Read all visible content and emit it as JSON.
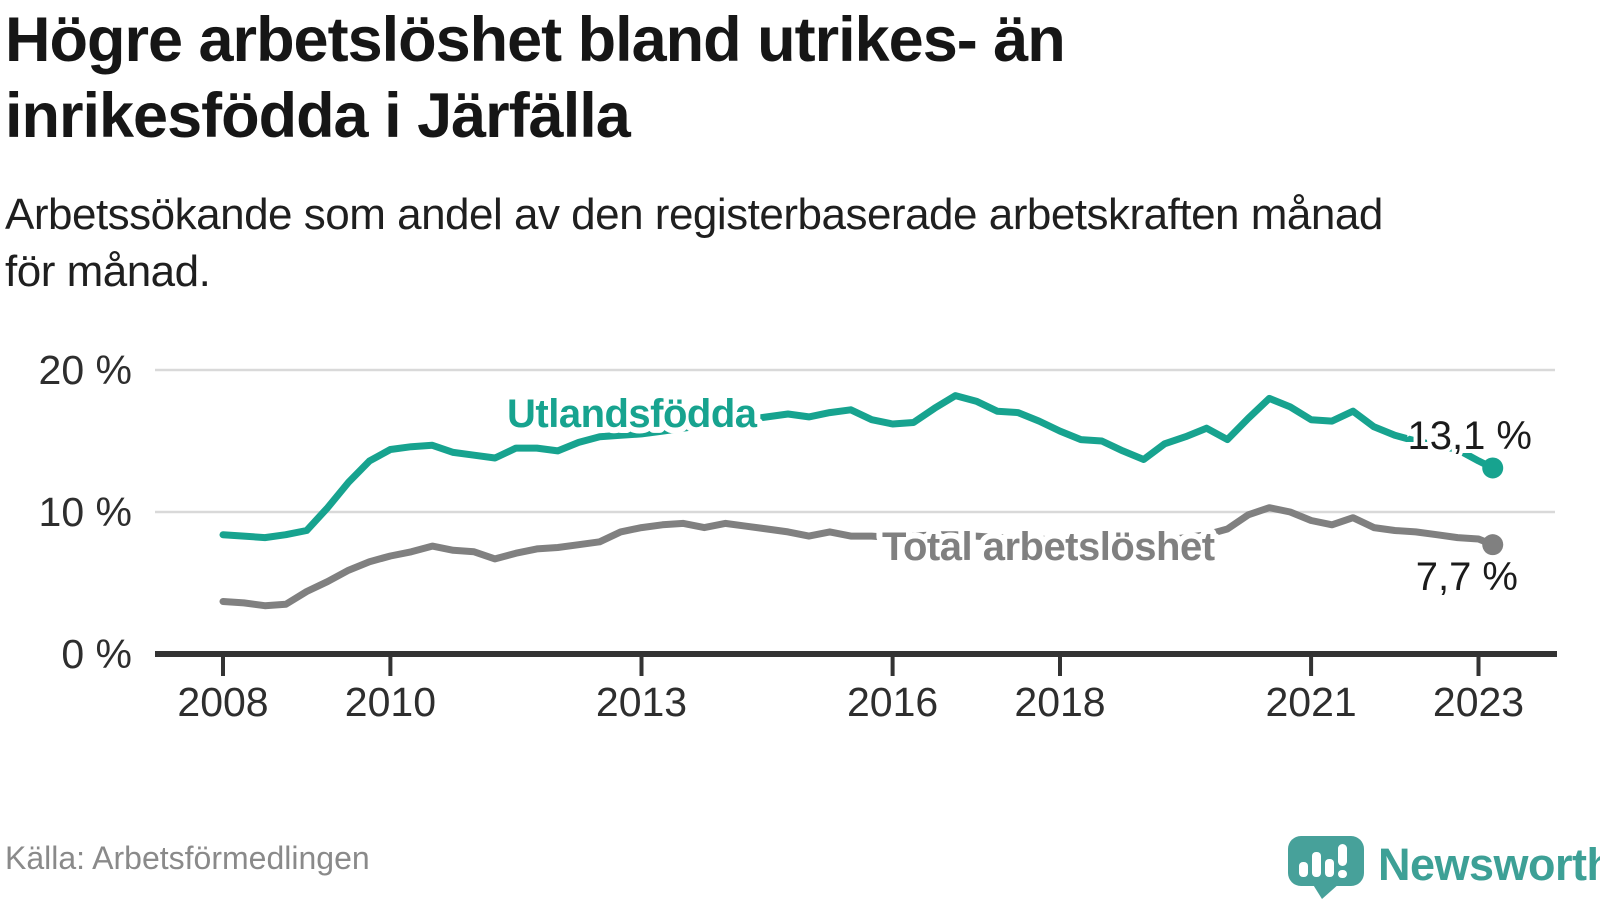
{
  "header": {
    "title_line1": "Högre arbetslöshet bland utrikes- än",
    "title_line2": "inrikesfödda i Järfälla",
    "subtitle_line1": "Arbetssökande som andel av den registerbaserade arbetskraften månad",
    "subtitle_line2": "för månad."
  },
  "footer": {
    "source": "Källa: Arbetsförmedlingen",
    "brand_name": "Newsworthy",
    "logo_icon": "speech-bubble-bar-chart-icon"
  },
  "colors": {
    "foreign_born_line": "#17a38f",
    "total_line": "#808080",
    "grid_line": "#d9d9d9",
    "axis_line": "#333333",
    "tick_label": "#2e2e2e",
    "value_label": "#1b1b1b",
    "title_text": "#161616",
    "source_text": "#8a8a8a",
    "brand_teal": "#3da096",
    "logo_teal": "#47a19a"
  },
  "chart_data": {
    "type": "line",
    "unit": "%",
    "title": "Arbetssökande som andel av den registerbaserade arbetskraften månad för månad",
    "xlabel": "",
    "ylabel": "",
    "ylim": [
      0,
      21
    ],
    "xlim": [
      2007.9,
      2023.6
    ],
    "grid": "horizontal",
    "legend_position": "inline-labels",
    "x": [
      2008.0,
      2008.25,
      2008.5,
      2008.75,
      2009.0,
      2009.25,
      2009.5,
      2009.75,
      2010.0,
      2010.25,
      2010.5,
      2010.75,
      2011.0,
      2011.25,
      2011.5,
      2011.75,
      2012.0,
      2012.25,
      2012.5,
      2012.75,
      2013.0,
      2013.25,
      2013.5,
      2013.75,
      2014.0,
      2014.25,
      2014.5,
      2014.75,
      2015.0,
      2015.25,
      2015.5,
      2015.75,
      2016.0,
      2016.25,
      2016.5,
      2016.75,
      2017.0,
      2017.25,
      2017.5,
      2017.75,
      2018.0,
      2018.25,
      2018.5,
      2018.75,
      2019.0,
      2019.25,
      2019.5,
      2019.75,
      2020.0,
      2020.25,
      2020.5,
      2020.75,
      2021.0,
      2021.25,
      2021.5,
      2021.75,
      2022.0,
      2022.25,
      2022.5,
      2022.75,
      2023.0,
      2023.17
    ],
    "series": [
      {
        "name": "Utlandsfödda",
        "color": "#17a38f",
        "end_label": "13,1 %",
        "last_value": 13.1,
        "values": [
          8.4,
          8.3,
          8.2,
          8.4,
          8.7,
          10.3,
          12.1,
          13.6,
          14.4,
          14.6,
          14.7,
          14.2,
          14.0,
          13.8,
          14.5,
          14.5,
          14.3,
          14.9,
          15.3,
          15.4,
          15.5,
          15.7,
          15.9,
          16.1,
          16.3,
          16.5,
          16.7,
          16.9,
          16.7,
          17.0,
          17.2,
          16.5,
          16.2,
          16.3,
          17.3,
          18.2,
          17.8,
          17.1,
          17.0,
          16.4,
          15.7,
          15.1,
          15.0,
          14.3,
          13.7,
          14.8,
          15.3,
          15.9,
          15.1,
          16.6,
          18.0,
          17.4,
          16.5,
          16.4,
          17.1,
          16.0,
          15.4,
          15.0,
          14.7,
          14.4,
          13.6,
          13.1
        ]
      },
      {
        "name": "Total arbetslöshet",
        "color": "#808080",
        "end_label": "7,7 %",
        "last_value": 7.7,
        "values": [
          3.7,
          3.6,
          3.4,
          3.5,
          4.4,
          5.1,
          5.9,
          6.5,
          6.9,
          7.2,
          7.6,
          7.3,
          7.2,
          6.7,
          7.1,
          7.4,
          7.5,
          7.7,
          7.9,
          8.6,
          8.9,
          9.1,
          9.2,
          8.9,
          9.2,
          9.0,
          8.8,
          8.6,
          8.3,
          8.6,
          8.3,
          8.3,
          8.2,
          8.3,
          8.4,
          8.4,
          8.3,
          8.2,
          8.2,
          8.1,
          8.0,
          7.9,
          7.9,
          7.8,
          7.9,
          8.0,
          8.2,
          8.4,
          8.8,
          9.8,
          10.3,
          10.0,
          9.4,
          9.1,
          9.6,
          8.9,
          8.7,
          8.6,
          8.4,
          8.2,
          8.1,
          7.7
        ]
      }
    ],
    "y_ticks": [
      {
        "value": 0,
        "label": "0 %"
      },
      {
        "value": 10,
        "label": "10 %"
      },
      {
        "value": 20,
        "label": "20 %"
      }
    ],
    "x_ticks": [
      {
        "value": 2008,
        "label": "2008"
      },
      {
        "value": 2010,
        "label": "2010"
      },
      {
        "value": 2013,
        "label": "2013"
      },
      {
        "value": 2016,
        "label": "2016"
      },
      {
        "value": 2018,
        "label": "2018"
      },
      {
        "value": 2021,
        "label": "2021"
      },
      {
        "value": 2023,
        "label": "2023"
      }
    ]
  }
}
